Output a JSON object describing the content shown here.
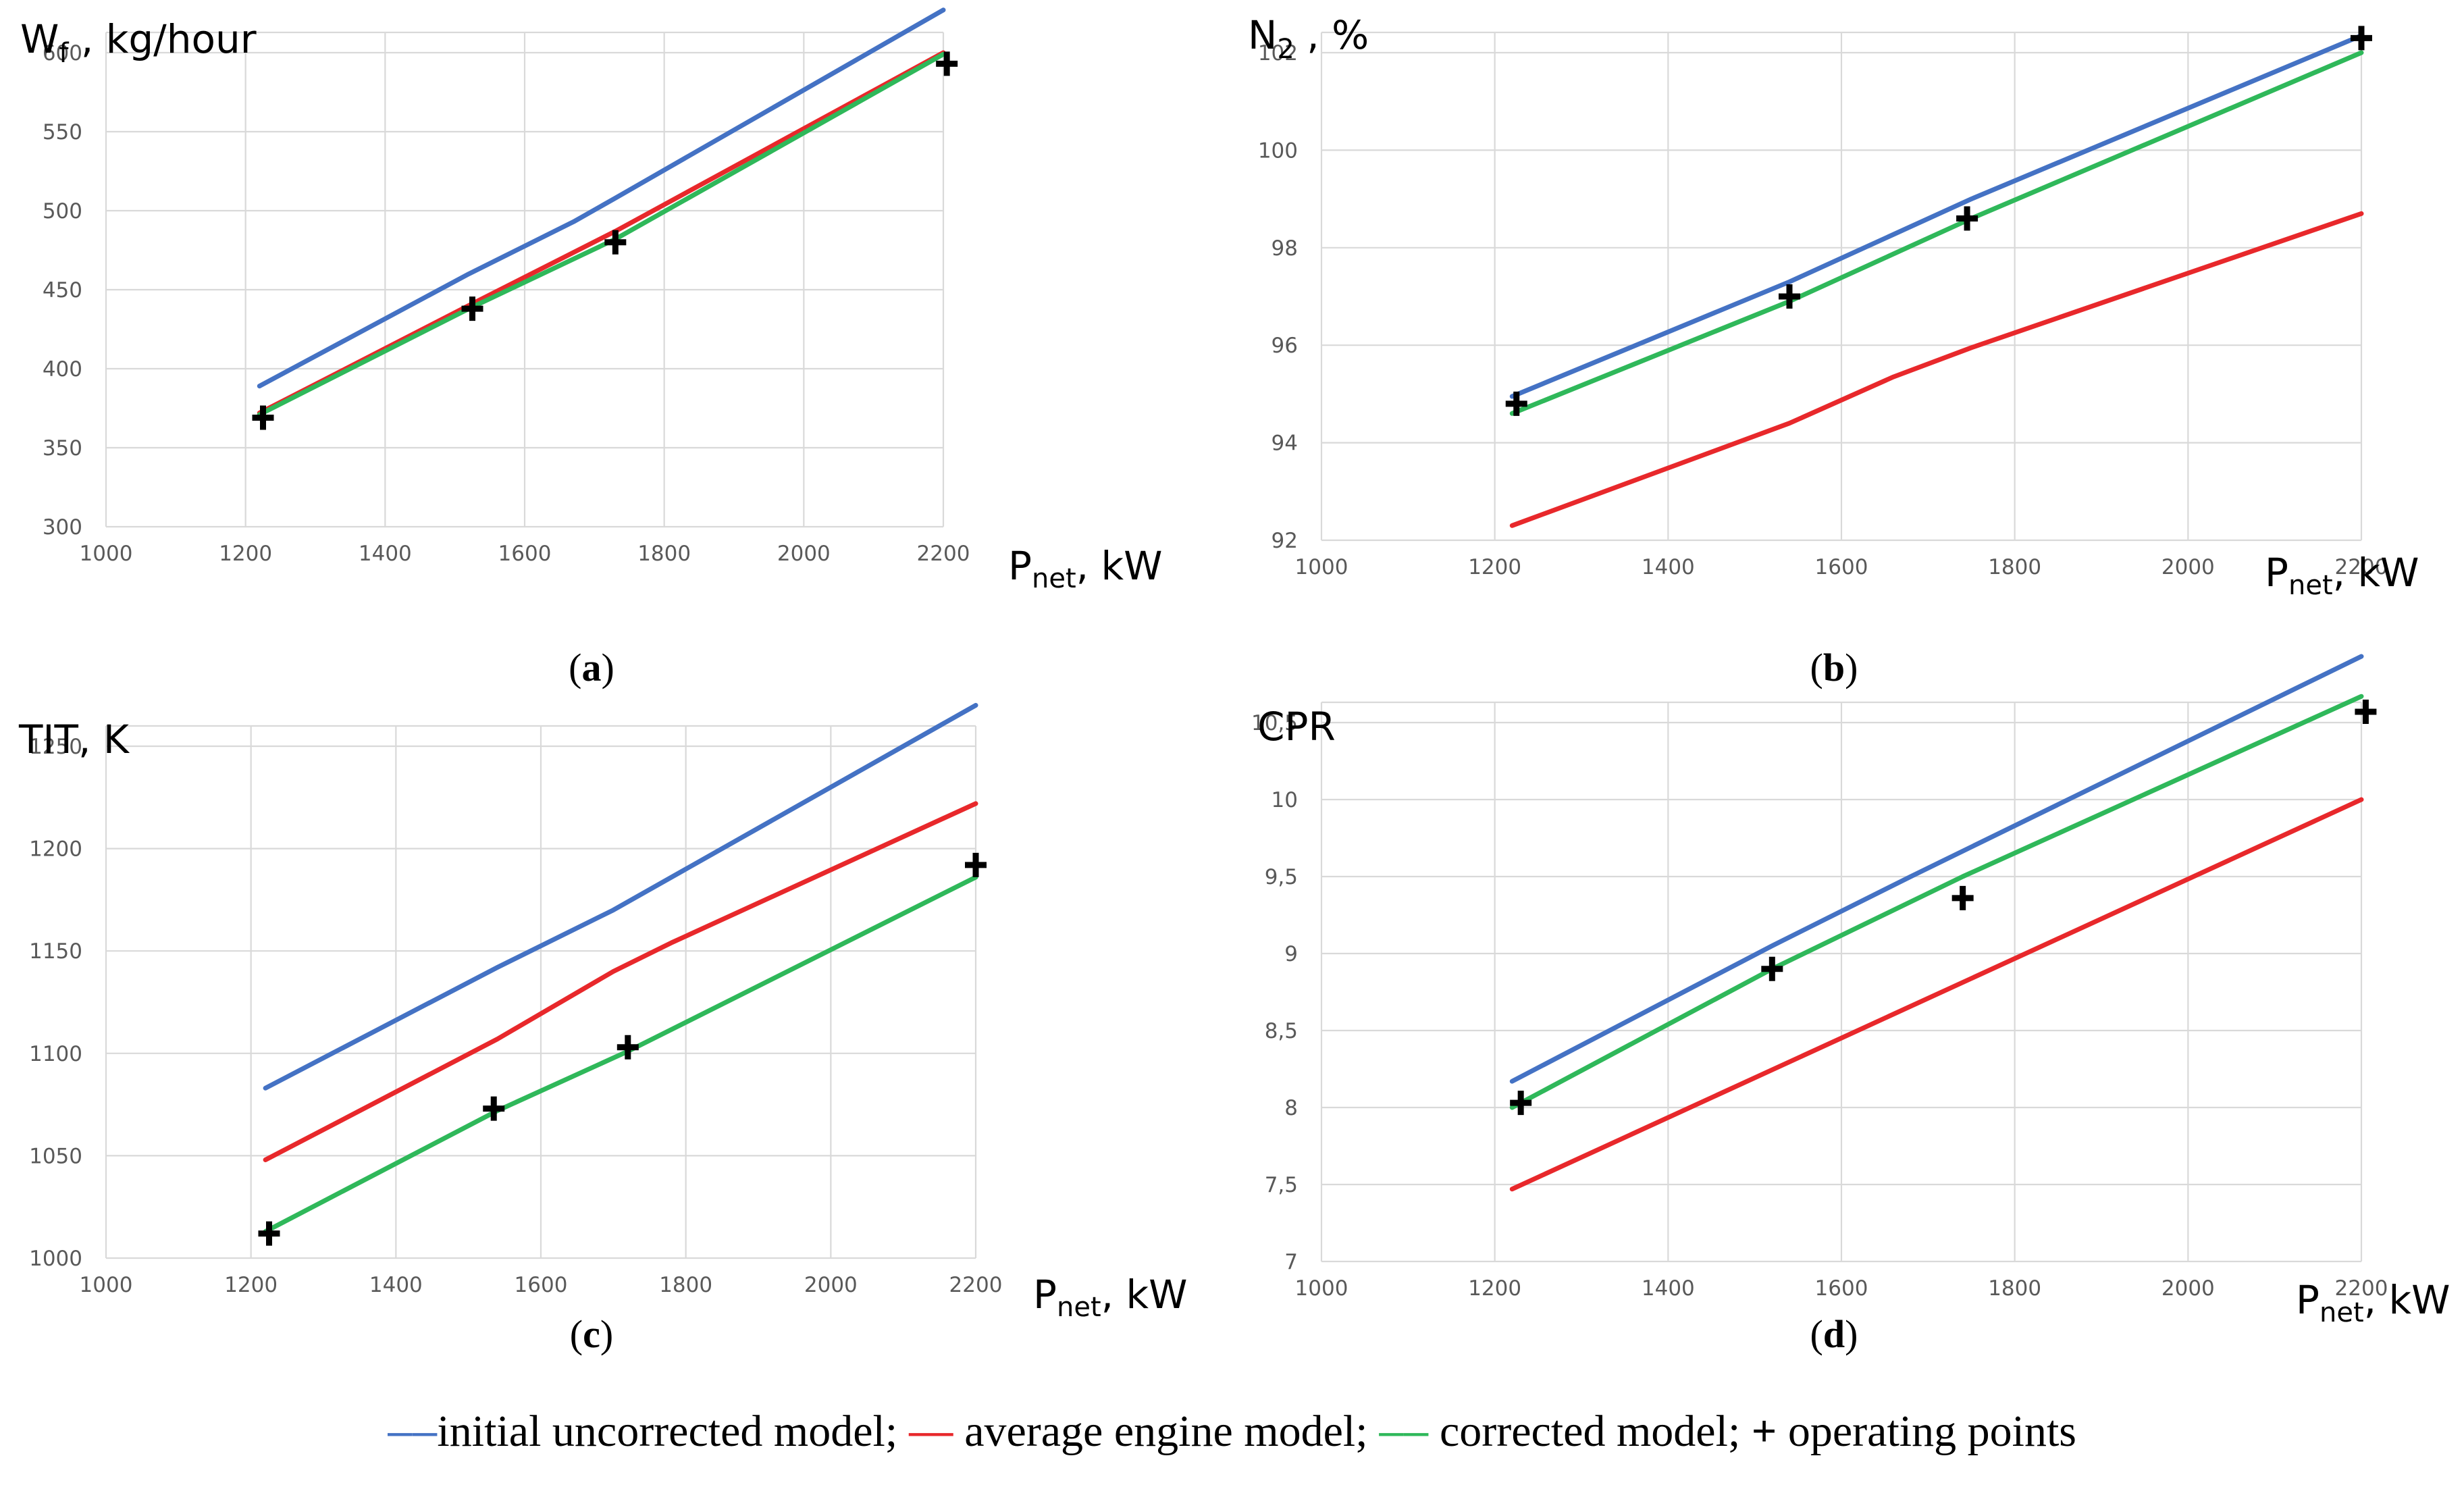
{
  "chart_data": [
    {
      "type": "line",
      "panel_label": "a",
      "ylabel": "W",
      "ylabel_sub": "f",
      "ylabel_rest": " , kg/hour",
      "xlabel": "P",
      "xlabel_sub": "net",
      "xlabel_rest": ", kW",
      "xlim": [
        1000,
        2200
      ],
      "ylim": [
        300,
        600
      ],
      "xticks": [
        "1000",
        "1200",
        "1400",
        "1600",
        "1800",
        "2000",
        "2200"
      ],
      "yticks": [
        "300",
        "350",
        "400",
        "450",
        "500",
        "550",
        "600"
      ],
      "grid": true,
      "series": [
        {
          "name": "initial uncorrected model",
          "color": "#4472c4",
          "x": [
            1220,
            1520,
            1670,
            1730,
            2200
          ],
          "y": [
            389,
            460,
            493,
            508,
            627
          ]
        },
        {
          "name": "average engine model",
          "color": "#e8282b",
          "x": [
            1220,
            1520,
            1730,
            2200
          ],
          "y": [
            372,
            440,
            487,
            600
          ]
        },
        {
          "name": "corrected model",
          "color": "#2fb85a",
          "x": [
            1220,
            1520,
            1730,
            2200
          ],
          "y": [
            371,
            438,
            482,
            599
          ]
        }
      ],
      "points": {
        "name": "operating points",
        "x": [
          1225,
          1525,
          1730,
          2205
        ],
        "y": [
          369,
          438,
          480,
          593
        ]
      }
    },
    {
      "type": "line",
      "panel_label": "b",
      "ylabel": "N",
      "ylabel_sub": "2",
      "ylabel_rest": " , %",
      "xlabel": "P",
      "xlabel_sub": "net",
      "xlabel_rest": ", kW",
      "xlim": [
        1000,
        2200
      ],
      "ylim": [
        92,
        102
      ],
      "xticks": [
        "1000",
        "1200",
        "1400",
        "1600",
        "1800",
        "2000",
        "2200"
      ],
      "yticks": [
        "92",
        "94",
        "96",
        "98",
        "100",
        "102"
      ],
      "grid": true,
      "series": [
        {
          "name": "initial uncorrected model",
          "color": "#4472c4",
          "x": [
            1220,
            1540,
            1750,
            2200
          ],
          "y": [
            94.95,
            97.3,
            99.0,
            102.35
          ]
        },
        {
          "name": "average engine model",
          "color": "#e8282b",
          "x": [
            1220,
            1540,
            1660,
            1750,
            2200
          ],
          "y": [
            92.3,
            94.4,
            95.35,
            95.95,
            98.7
          ]
        },
        {
          "name": "corrected model",
          "color": "#2fb85a",
          "x": [
            1220,
            1540,
            1750,
            2200
          ],
          "y": [
            94.6,
            96.9,
            98.6,
            102.0
          ]
        }
      ],
      "points": {
        "name": "operating points",
        "x": [
          1225,
          1540,
          1745,
          2200
        ],
        "y": [
          94.8,
          97.0,
          98.6,
          102.3
        ]
      }
    },
    {
      "type": "line",
      "panel_label": "c",
      "ylabel": "TIT, K",
      "ylabel_sub": "",
      "ylabel_rest": "",
      "xlabel": "P",
      "xlabel_sub": "net",
      "xlabel_rest": ", kW",
      "xlim": [
        1000,
        2200
      ],
      "ylim": [
        1000,
        1250
      ],
      "xticks": [
        "1000",
        "1200",
        "1400",
        "1600",
        "1800",
        "2000",
        "2200"
      ],
      "yticks": [
        "1000",
        "1050",
        "1100",
        "1150",
        "1200",
        "1250"
      ],
      "grid": true,
      "series": [
        {
          "name": "initial uncorrected model",
          "color": "#4472c4",
          "x": [
            1220,
            1540,
            1700,
            2200
          ],
          "y": [
            1083,
            1142,
            1170,
            1270
          ]
        },
        {
          "name": "average engine model",
          "color": "#e8282b",
          "x": [
            1220,
            1540,
            1700,
            1780,
            2200
          ],
          "y": [
            1048,
            1107,
            1140,
            1154,
            1222
          ]
        },
        {
          "name": "corrected model",
          "color": "#2fb85a",
          "x": [
            1220,
            1540,
            1720,
            2200
          ],
          "y": [
            1013,
            1072,
            1101,
            1186
          ]
        }
      ],
      "points": {
        "name": "operating points",
        "x": [
          1225,
          1535,
          1720,
          2200
        ],
        "y": [
          1012,
          1073,
          1103,
          1192
        ]
      }
    },
    {
      "type": "line",
      "panel_label": "d",
      "ylabel": "CPR",
      "ylabel_sub": "",
      "ylabel_rest": "",
      "xlabel": "P",
      "xlabel_sub": "net",
      "xlabel_rest": ", kW",
      "xlim": [
        1000,
        2200
      ],
      "ylim": [
        7,
        10.5
      ],
      "xticks": [
        "1000",
        "1200",
        "1400",
        "1600",
        "1800",
        "2000",
        "2200"
      ],
      "yticks": [
        "7",
        "7,5",
        "8",
        "8,5",
        "9",
        "9,5",
        "10",
        "10,5"
      ],
      "grid": true,
      "series": [
        {
          "name": "initial uncorrected model",
          "color": "#4472c4",
          "x": [
            1220,
            1520,
            1680,
            1760,
            2200
          ],
          "y": [
            8.17,
            9.05,
            9.5,
            9.72,
            10.93
          ]
        },
        {
          "name": "average engine model",
          "color": "#e8282b",
          "x": [
            1220,
            2200
          ],
          "y": [
            7.47,
            10.0
          ]
        },
        {
          "name": "corrected model",
          "color": "#2fb85a",
          "x": [
            1220,
            1520,
            1740,
            2200
          ],
          "y": [
            8.0,
            8.9,
            9.5,
            10.67
          ]
        }
      ],
      "points": {
        "name": "operating points",
        "x": [
          1230,
          1520,
          1740,
          2205
        ],
        "y": [
          8.03,
          8.9,
          9.36,
          10.57
        ]
      }
    }
  ],
  "legend": {
    "initial_mark": "––",
    "initial_text": "initial uncorrected model;",
    "average_mark": "—",
    "average_text": " average engine model;",
    "corrected_mark": "––",
    "corrected_text": " corrected model;",
    "points_mark": "+",
    "points_text": " operating points"
  },
  "colors": {
    "initial": "#4472c4",
    "average": "#e8282b",
    "corrected": "#2fb85a",
    "points": "#000000"
  }
}
